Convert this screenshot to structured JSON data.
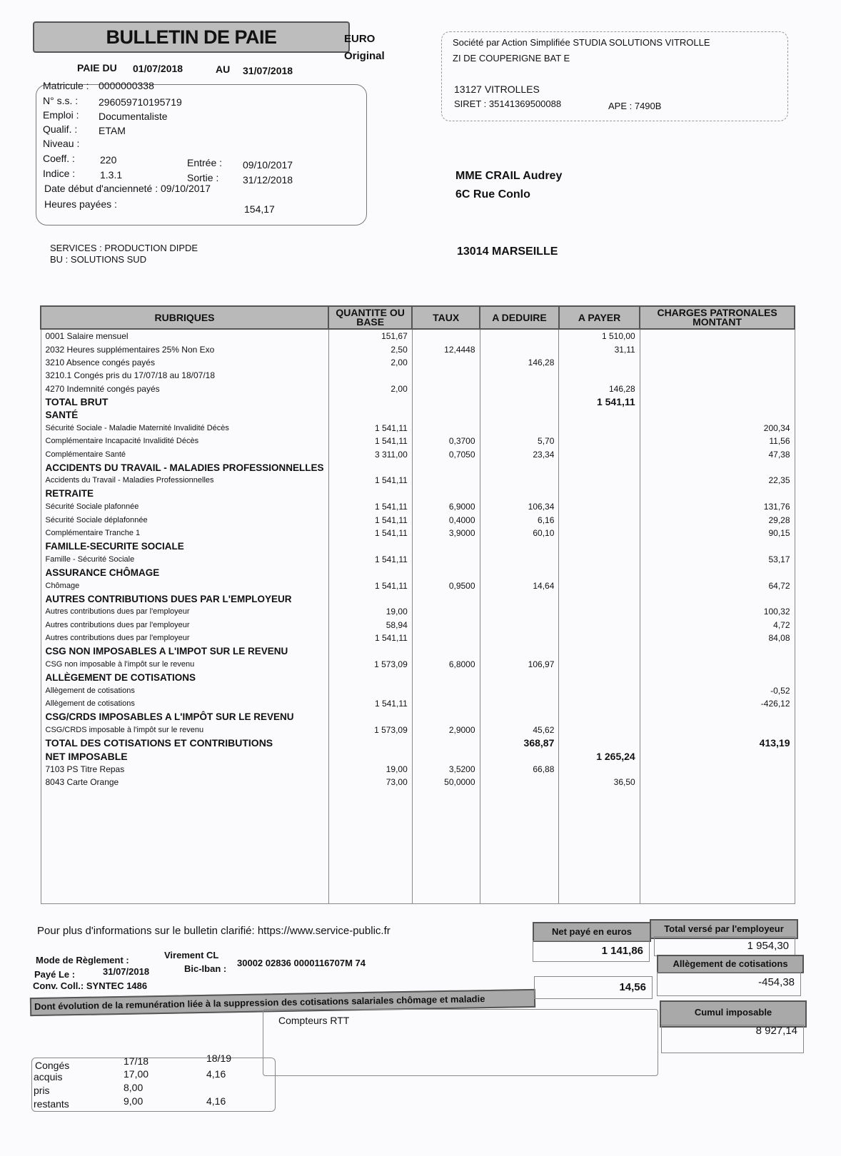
{
  "header": {
    "title": "BULLETIN DE PAIE",
    "currency": "EURO",
    "copy": "Original",
    "period_label": "PAIE DU",
    "period_start": "01/07/2018",
    "period_to_label": "AU",
    "period_end": "31/07/2018"
  },
  "employee": {
    "matricule_label": "Matricule :",
    "matricule": "0000000338",
    "ss_label": "N° s.s. :",
    "ss": "296059710195719",
    "emploi_label": "Emploi :",
    "emploi": "Documentaliste",
    "qualif_label": "Qualif. :",
    "qualif": "ETAM",
    "niveau_label": "Niveau :",
    "coeff_label": "Coeff. :",
    "coeff": "220",
    "indice_label": "Indice :",
    "indice": "1.3.1",
    "entree_label": "Entrée :",
    "entree": "09/10/2017",
    "sortie_label": "Sortie :",
    "sortie": "31/12/2018",
    "anciennete": "Date début d'ancienneté : 09/10/2017",
    "heures_label": "Heures payées :",
    "heures": "154,17",
    "services": "SERVICES : PRODUCTION DIPDE",
    "bu": "BU : SOLUTIONS SUD"
  },
  "company": {
    "line1": "Société par Action Simplifiée  STUDIA SOLUTIONS VITROLLE",
    "line2": "ZI DE COUPERIGNE BAT E",
    "city": "13127  VITROLLES",
    "siret": "SIRET : 35141369500088",
    "ape": "APE :  7490B"
  },
  "recipient": {
    "name": "MME  CRAIL  Audrey",
    "street": "6C Rue Conlo",
    "city": "13014  MARSEILLE"
  },
  "table": {
    "headers": [
      "RUBRIQUES",
      "QUANTITE OU BASE",
      "TAUX",
      "A DEDUIRE",
      "A PAYER",
      "CHARGES PATRONALES MONTANT"
    ],
    "rows": [
      {
        "t": "line",
        "c": [
          "0001 Salaire mensuel",
          "151,67",
          "",
          "",
          "1 510,00",
          ""
        ]
      },
      {
        "t": "line",
        "c": [
          "2032 Heures supplémentaires 25% Non Exo",
          "2,50",
          "12,4448",
          "",
          "31,11",
          ""
        ]
      },
      {
        "t": "line",
        "c": [
          "3210 Absence congés payés",
          "2,00",
          "",
          "146,28",
          "",
          ""
        ]
      },
      {
        "t": "line",
        "c": [
          "3210.1 Congés pris du 17/07/18 au 18/07/18",
          "",
          "",
          "",
          "",
          ""
        ]
      },
      {
        "t": "line",
        "c": [
          "4270 Indemnité congés payés",
          "2,00",
          "",
          "",
          "146,28",
          ""
        ]
      },
      {
        "t": "total",
        "c": [
          "TOTAL BRUT",
          "",
          "",
          "",
          "1 541,11",
          ""
        ]
      },
      {
        "t": "section",
        "c": [
          "SANTÉ",
          "",
          "",
          "",
          "",
          ""
        ]
      },
      {
        "t": "sub",
        "c": [
          "Sécurité Sociale - Maladie Maternité Invalidité Décès",
          "1 541,11",
          "",
          "",
          "",
          "200,34"
        ]
      },
      {
        "t": "sub",
        "c": [
          "Complémentaire Incapacité Invalidité Décès",
          "1 541,11",
          "0,3700",
          "5,70",
          "",
          "11,56"
        ]
      },
      {
        "t": "sub",
        "c": [
          "Complémentaire Santé",
          "3 311,00",
          "0,7050",
          "23,34",
          "",
          "47,38"
        ]
      },
      {
        "t": "section",
        "c": [
          "ACCIDENTS DU TRAVAIL - MALADIES PROFESSIONNELLES",
          "",
          "",
          "",
          "",
          ""
        ]
      },
      {
        "t": "sub",
        "c": [
          "Accidents du Travail - Maladies Professionnelles",
          "1 541,11",
          "",
          "",
          "",
          "22,35"
        ]
      },
      {
        "t": "section",
        "c": [
          "RETRAITE",
          "",
          "",
          "",
          "",
          ""
        ]
      },
      {
        "t": "sub",
        "c": [
          "Sécurité Sociale plafonnée",
          "1 541,11",
          "6,9000",
          "106,34",
          "",
          "131,76"
        ]
      },
      {
        "t": "sub",
        "c": [
          "Sécurité Sociale déplafonnée",
          "1 541,11",
          "0,4000",
          "6,16",
          "",
          "29,28"
        ]
      },
      {
        "t": "sub",
        "c": [
          "Complémentaire Tranche 1",
          "1 541,11",
          "3,9000",
          "60,10",
          "",
          "90,15"
        ]
      },
      {
        "t": "section",
        "c": [
          "FAMILLE-SECURITE SOCIALE",
          "",
          "",
          "",
          "",
          ""
        ]
      },
      {
        "t": "sub",
        "c": [
          "Famille - Sécurité Sociale",
          "1 541,11",
          "",
          "",
          "",
          "53,17"
        ]
      },
      {
        "t": "section",
        "c": [
          "ASSURANCE CHÔMAGE",
          "",
          "",
          "",
          "",
          ""
        ]
      },
      {
        "t": "sub",
        "c": [
          "Chômage",
          "1 541,11",
          "0,9500",
          "14,64",
          "",
          "64,72"
        ]
      },
      {
        "t": "section",
        "c": [
          "AUTRES CONTRIBUTIONS DUES PAR L'EMPLOYEUR",
          "",
          "",
          "",
          "",
          ""
        ]
      },
      {
        "t": "sub",
        "c": [
          "Autres contributions dues par l'employeur",
          "19,00",
          "",
          "",
          "",
          "100,32"
        ]
      },
      {
        "t": "sub",
        "c": [
          "Autres contributions dues par l'employeur",
          "58,94",
          "",
          "",
          "",
          "4,72"
        ]
      },
      {
        "t": "sub",
        "c": [
          "Autres contributions dues par l'employeur",
          "1 541,11",
          "",
          "",
          "",
          "84,08"
        ]
      },
      {
        "t": "section",
        "c": [
          "CSG NON IMPOSABLES A L'IMPOT SUR LE REVENU",
          "",
          "",
          "",
          "",
          ""
        ]
      },
      {
        "t": "sub",
        "c": [
          "CSG non imposable à l'impôt sur le revenu",
          "1 573,09",
          "6,8000",
          "106,97",
          "",
          ""
        ]
      },
      {
        "t": "section",
        "c": [
          "ALLÈGEMENT DE COTISATIONS",
          "",
          "",
          "",
          "",
          ""
        ]
      },
      {
        "t": "sub",
        "c": [
          "Allègement de cotisations",
          "",
          "",
          "",
          "",
          "-0,52"
        ]
      },
      {
        "t": "sub",
        "c": [
          "Allègement de cotisations",
          "1 541,11",
          "",
          "",
          "",
          "-426,12"
        ]
      },
      {
        "t": "section",
        "c": [
          "CSG/CRDS IMPOSABLES A L'IMPÔT SUR LE REVENU",
          "",
          "",
          "",
          "",
          ""
        ]
      },
      {
        "t": "sub",
        "c": [
          "CSG/CRDS imposable à l'impôt sur le revenu",
          "1 573,09",
          "2,9000",
          "45,62",
          "",
          ""
        ]
      },
      {
        "t": "total",
        "c": [
          "TOTAL DES COTISATIONS ET CONTRIBUTIONS",
          "",
          "",
          "368,87",
          "",
          "413,19"
        ]
      },
      {
        "t": "total",
        "c": [
          "NET IMPOSABLE",
          "",
          "",
          "",
          "1 265,24",
          ""
        ]
      },
      {
        "t": "line",
        "c": [
          "7103 PS Titre Repas",
          "19,00",
          "3,5200",
          "66,88",
          "",
          ""
        ]
      },
      {
        "t": "line",
        "c": [
          "8043 Carte Orange",
          "73,00",
          "50,0000",
          "",
          "36,50",
          ""
        ]
      }
    ]
  },
  "footer": {
    "info": "Pour plus d'informations sur le bulletin clarifié: https://www.service-public.fr",
    "mode_label": "Mode de Règlement :",
    "mode": "Virement  CL",
    "paye_label": "Payé Le :",
    "paye": "31/07/2018",
    "iban_label": "Bic-Iban :",
    "iban": "30002  02836  0000116707M  74",
    "conv": "Conv. Coll.:  SYNTEC 1486",
    "evolution": "Dont évolution de la remunération liée à la suppression des cotisations salariales chômage et maladie",
    "evolution_value": "14,56",
    "net_label": "Net payé en euros",
    "net": "1 141,86",
    "total_label": "Total versé par l'employeur",
    "total": "1 954,30",
    "allegement_label": "Allègement de cotisations",
    "allegement": "-454,38",
    "cumul_label": "Cumul imposable",
    "cumul": "8 927,14",
    "rtt_label": "Compteurs RTT",
    "conges": {
      "title": "Congés",
      "col1": "17/18",
      "col2": "18/19",
      "rows": [
        {
          "label": "acquis",
          "v1": "17,00",
          "v2": "4,16"
        },
        {
          "label": "pris",
          "v1": "8,00",
          "v2": ""
        },
        {
          "label": "restants",
          "v1": "9,00",
          "v2": "4,16"
        }
      ]
    }
  }
}
